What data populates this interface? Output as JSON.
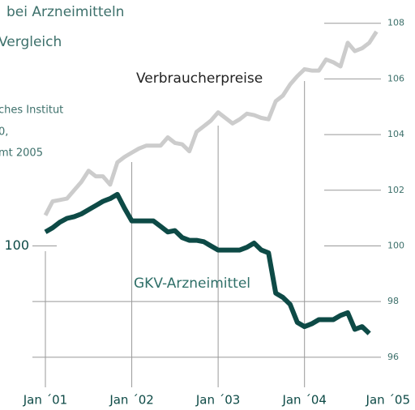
{
  "header_fragments": [
    "bei Arzneimitteln",
    "Vergleich",
    "ches Institut",
    "0,",
    "mt 2005"
  ],
  "chart_data": {
    "type": "line",
    "categories": [
      "Jan ´01",
      null,
      null,
      null,
      null,
      null,
      null,
      null,
      null,
      null,
      null,
      null,
      "Jan ´02",
      null,
      null,
      null,
      null,
      null,
      null,
      null,
      null,
      null,
      null,
      null,
      "Jan ´03",
      null,
      null,
      null,
      null,
      null,
      null,
      null,
      null,
      null,
      null,
      null,
      "Jan ´04",
      null,
      null,
      null,
      null,
      null,
      null,
      null,
      null,
      null,
      null,
      null,
      "Jan ´05"
    ],
    "series": [
      {
        "name": "Verbraucherpreise",
        "color": "#cccccc",
        "values": [
          101.1,
          101.6,
          101.65,
          101.7,
          102.0,
          102.3,
          102.7,
          102.5,
          102.5,
          102.2,
          103.0,
          103.2,
          103.35,
          103.5,
          103.6,
          103.6,
          103.6,
          103.9,
          103.7,
          103.65,
          103.4,
          104.1,
          104.3,
          104.5,
          104.8,
          104.6,
          104.4,
          104.55,
          104.75,
          104.7,
          104.6,
          104.55,
          105.2,
          105.4,
          105.8,
          106.1,
          106.35,
          106.3,
          106.3,
          106.7,
          106.6,
          106.45,
          107.3,
          107.0,
          107.1,
          107.3,
          107.7,
          null,
          null
        ]
      },
      {
        "name": "GKV-Arzneimittel",
        "color": "#0d4a46",
        "values": [
          100.5,
          100.65,
          100.85,
          100.99,
          101.05,
          101.15,
          101.3,
          101.45,
          101.6,
          101.7,
          101.85,
          101.35,
          100.9,
          100.9,
          100.9,
          100.9,
          100.7,
          100.5,
          100.55,
          100.3,
          100.2,
          100.2,
          100.15,
          100.0,
          99.85,
          99.85,
          99.85,
          99.85,
          99.95,
          100.1,
          99.85,
          99.75,
          98.3,
          98.15,
          97.9,
          97.25,
          97.1,
          97.2,
          97.35,
          97.35,
          97.35,
          97.5,
          97.6,
          97.0,
          97.1,
          96.85,
          null,
          null,
          null
        ]
      }
    ],
    "ylim": [
      95.5,
      108.4
    ],
    "yticks": [
      96,
      98,
      100,
      102,
      104,
      106,
      108
    ],
    "y_left_ticks": [
      100
    ]
  }
}
